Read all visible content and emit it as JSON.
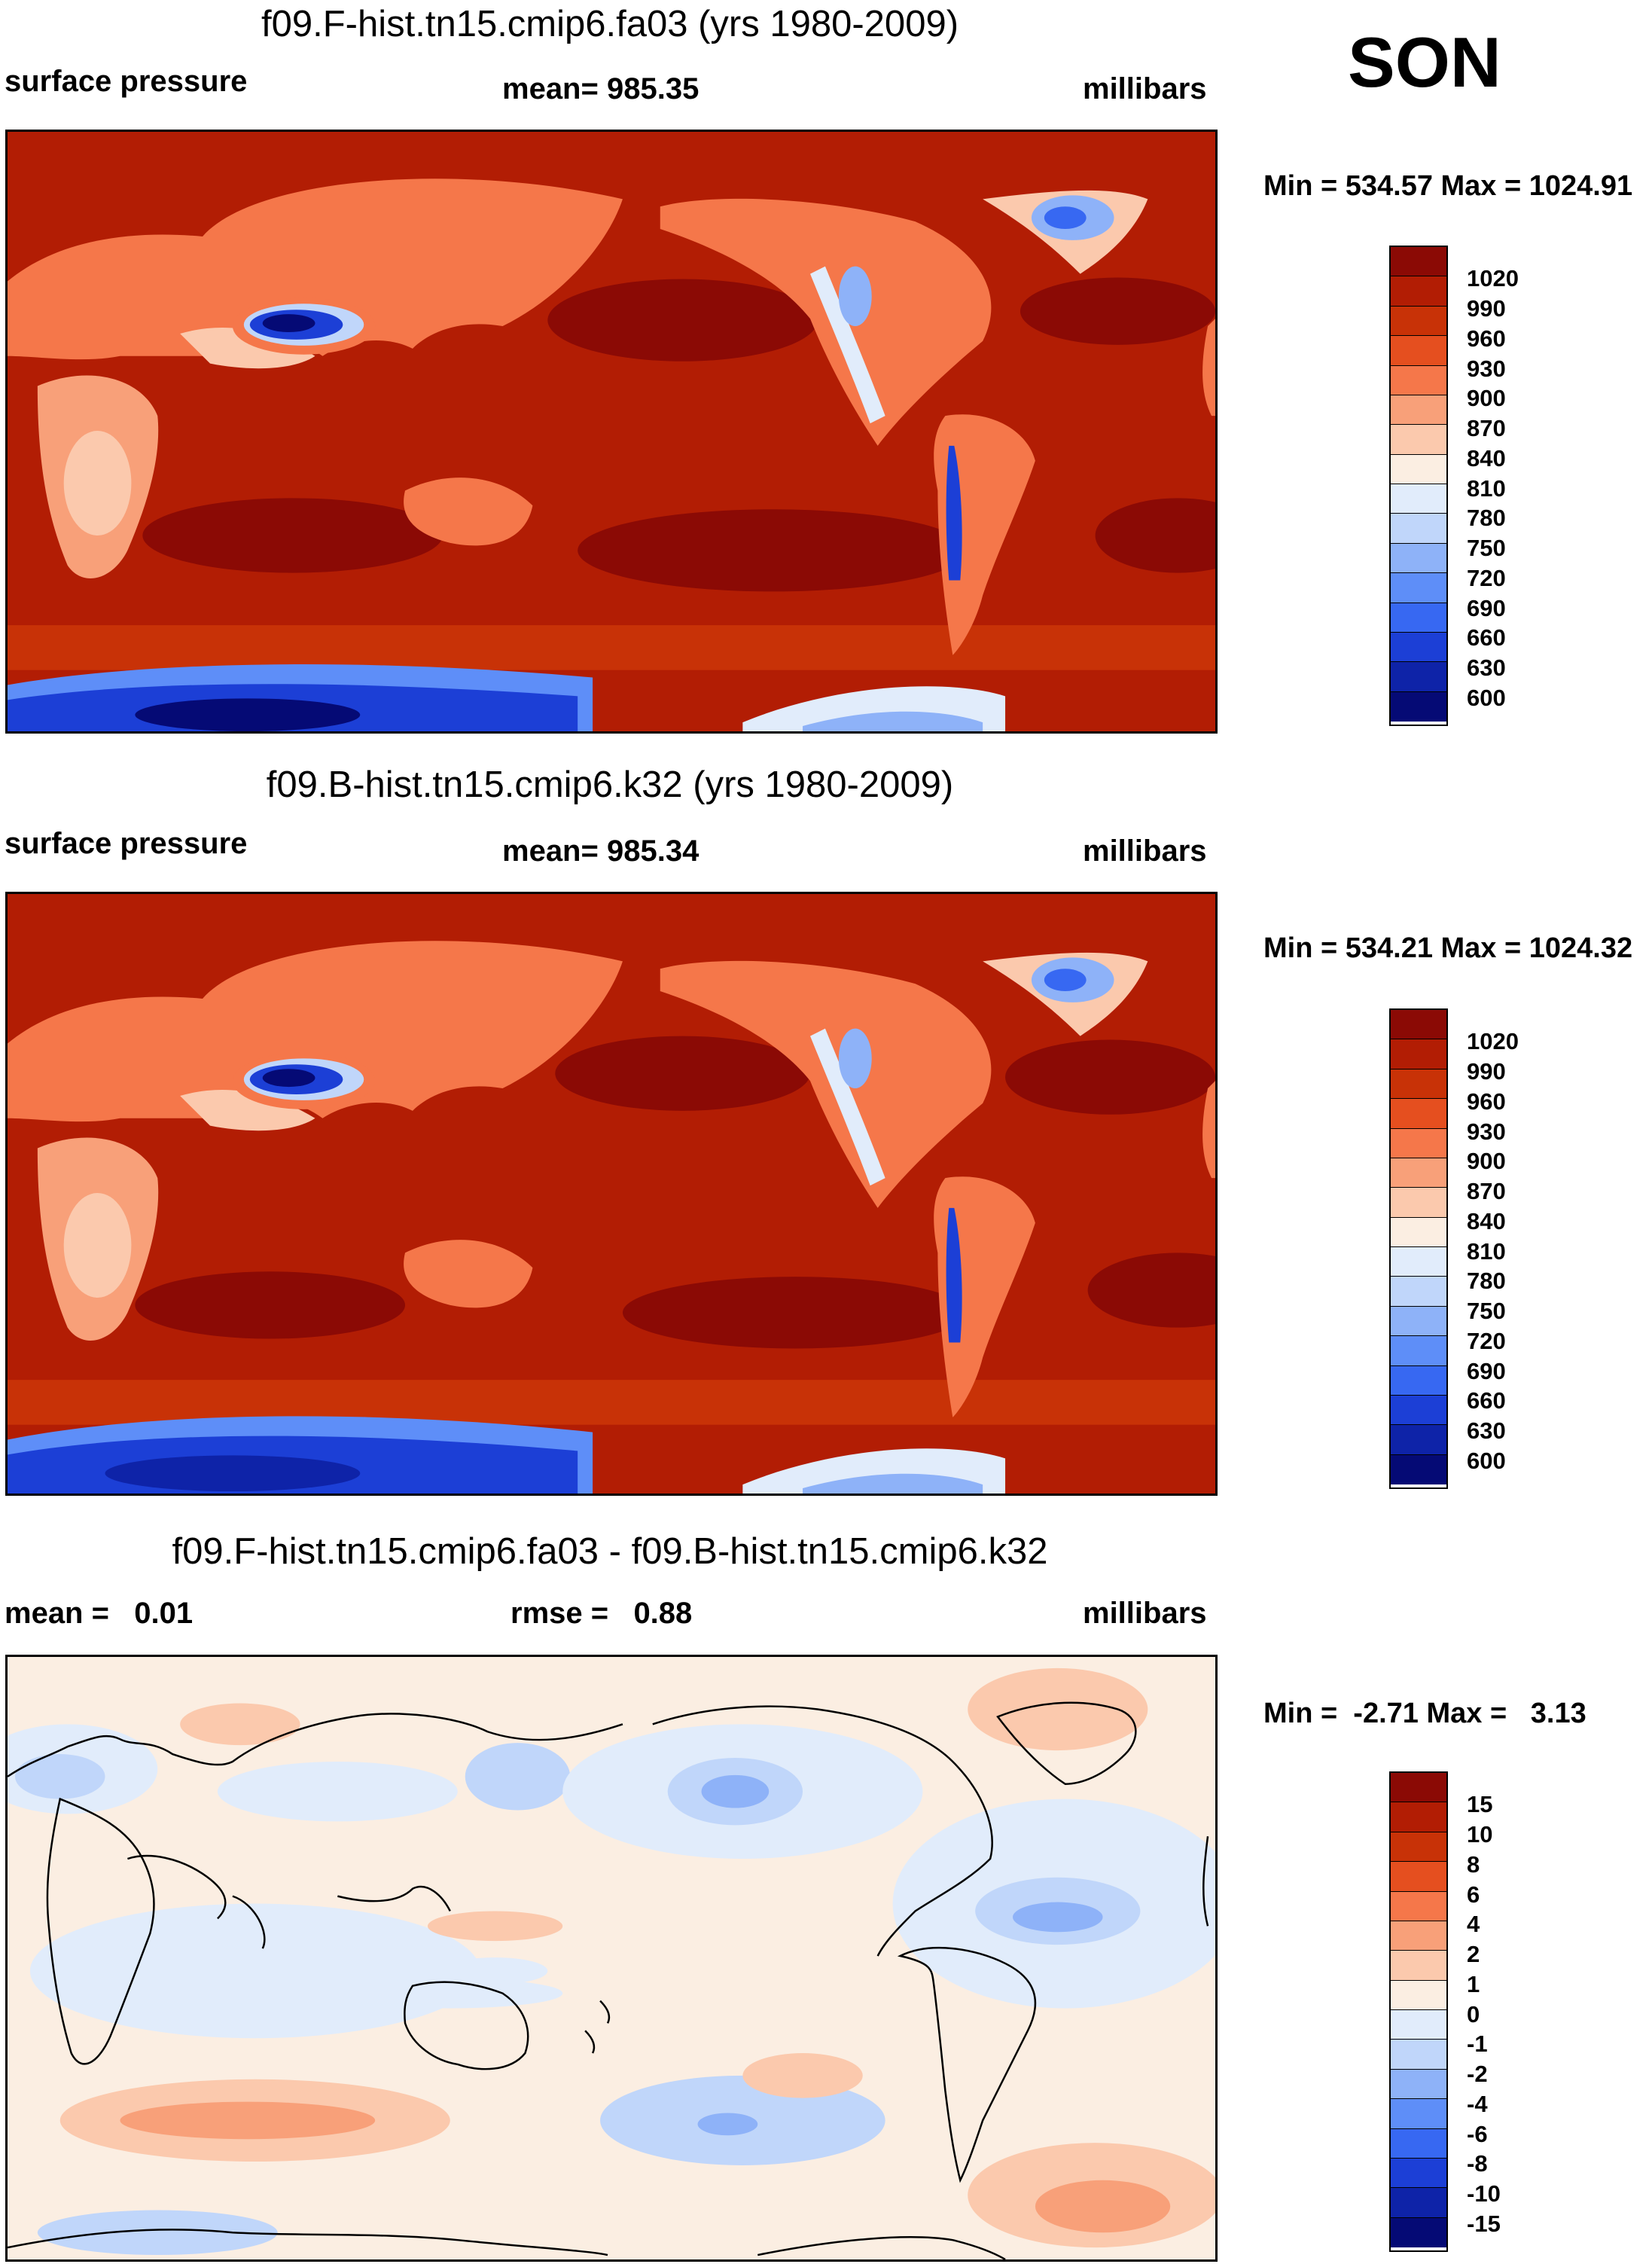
{
  "season": "SON",
  "colors": {
    "abs_scale": [
      "#050a75",
      "#0e23a8",
      "#1c3fd6",
      "#3768f2",
      "#5e8ef8",
      "#8eb2f8",
      "#c0d6fa",
      "#e1ecfb",
      "#fbeee2",
      "#fbc9ad",
      "#f8a079",
      "#f5774a",
      "#e54f1f",
      "#c83207",
      "#b21d04",
      "#8b0a05"
    ],
    "diff_scale": [
      "#050a75",
      "#0e23a8",
      "#1c3fd6",
      "#3768f2",
      "#5e8ef8",
      "#8eb2f8",
      "#c0d6fa",
      "#e1ecfb",
      "#fbeee2",
      "#fbc9ad",
      "#f8a079",
      "#f5774a",
      "#e54f1f",
      "#c83207",
      "#b21d04",
      "#8b0a05"
    ]
  },
  "panels": [
    {
      "id": "panel-1",
      "title": "f09.F-hist.tn15.cmip6.fa03 (yrs 1980-2009)",
      "left_label": "surface pressure",
      "center_label": "mean= 985.35",
      "right_label": "millibars",
      "minmax": "Min = 534.57 Max = 1024.91",
      "colorbar_ticks": [
        "1020",
        "990",
        "960",
        "930",
        "900",
        "870",
        "840",
        "810",
        "780",
        "750",
        "720",
        "690",
        "660",
        "630",
        "600"
      ]
    },
    {
      "id": "panel-2",
      "title": "f09.B-hist.tn15.cmip6.k32 (yrs 1980-2009)",
      "left_label": "surface pressure",
      "center_label": "mean= 985.34",
      "right_label": "millibars",
      "minmax": "Min = 534.21 Max = 1024.32",
      "colorbar_ticks": [
        "1020",
        "990",
        "960",
        "930",
        "900",
        "870",
        "840",
        "810",
        "780",
        "750",
        "720",
        "690",
        "660",
        "630",
        "600"
      ]
    },
    {
      "id": "panel-3",
      "title": "f09.F-hist.tn15.cmip6.fa03 - f09.B-hist.tn15.cmip6.k32",
      "left_label": "mean =   0.01",
      "center_label": "rmse =   0.88",
      "right_label": "millibars",
      "minmax": "Min =  -2.71 Max =   3.13",
      "colorbar_ticks": [
        "15",
        "10",
        "8",
        "6",
        "4",
        "2",
        "1",
        "0",
        "-1",
        "-2",
        "-4",
        "-6",
        "-8",
        "-10",
        "-15"
      ]
    }
  ]
}
